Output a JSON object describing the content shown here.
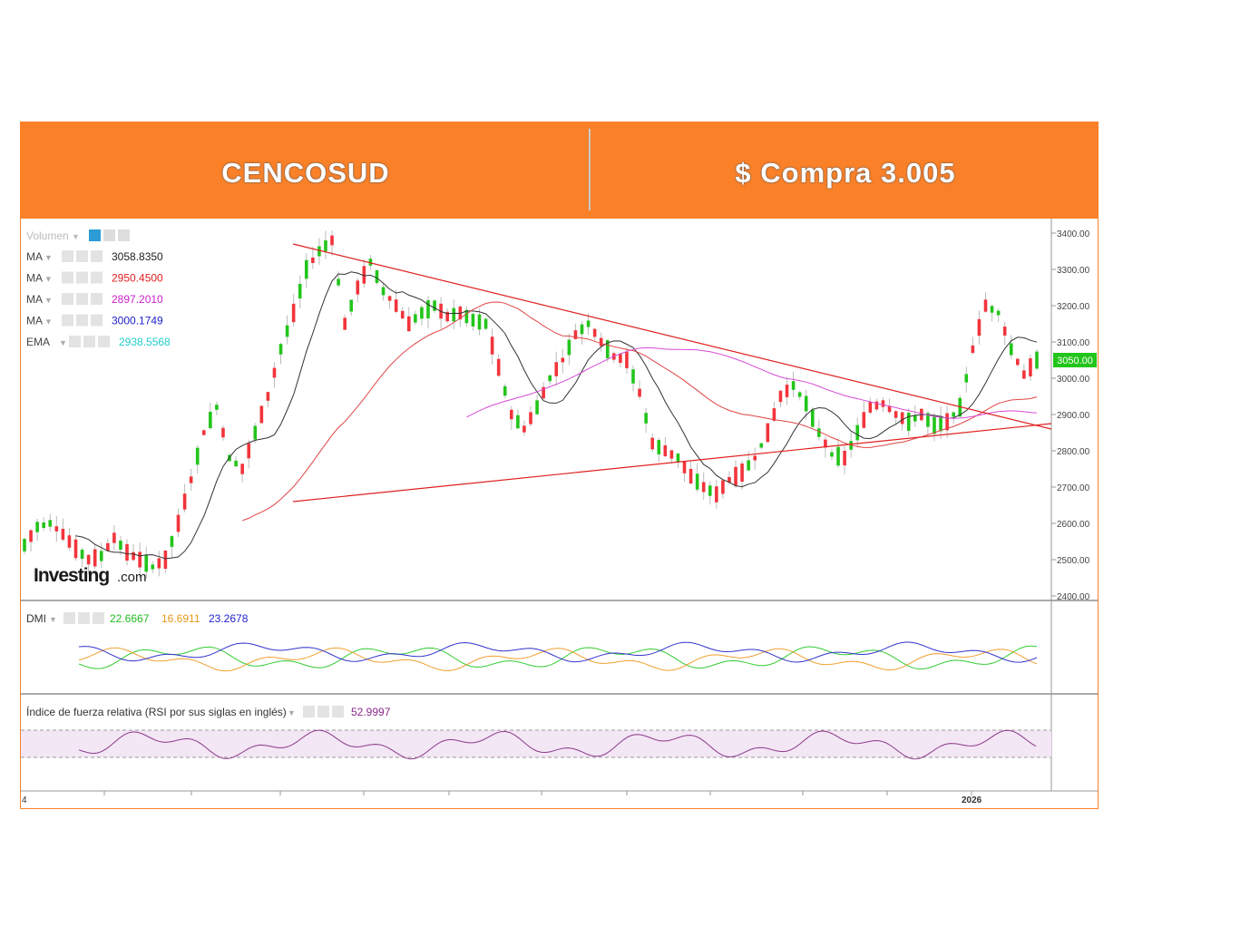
{
  "header": {
    "left_title": "CENCOSUD",
    "right_title": "$ Compra 3.005"
  },
  "colors": {
    "banner": "#fb8128",
    "up": "#22c51a",
    "down": "#f2343b",
    "ma1": "#333333",
    "ma2": "#e04545",
    "ma3": "#d64bd6",
    "ma4": "#3333cc",
    "ema": "#33cccc",
    "dmi_plus": "#33cc33",
    "dmi_minus": "#f0a030",
    "adx": "#3333cc",
    "rsi": "#8a3a8a"
  },
  "legend": {
    "volume": "Volumen",
    "indicators": [
      {
        "name": "MA",
        "value": "3058.8350",
        "color": "#222222"
      },
      {
        "name": "MA",
        "value": "2950.4500",
        "color": "#e02020"
      },
      {
        "name": "MA",
        "value": "2897.2010",
        "color": "#cc22cc"
      },
      {
        "name": "MA",
        "value": "3000.1749",
        "color": "#2222cc"
      },
      {
        "name": "EMA",
        "value": "2938.5568",
        "color": "#22cccc"
      }
    ],
    "dmi": {
      "name": "DMI",
      "values": [
        "22.6667",
        "16.6911",
        "23.2678"
      ]
    },
    "rsi": {
      "name": "Índice de fuerza relativa (RSI por sus siglas en inglés)",
      "value": "52.9997"
    }
  },
  "watermark": {
    "main": "Investing",
    "suffix": ".com"
  },
  "price_tag": "3050.00",
  "chart_data": {
    "type": "candlestick",
    "y_ticks": [
      "3400.00",
      "3300.00",
      "3200.00",
      "3100.00",
      "3000.00",
      "2900.00",
      "2800.00",
      "2700.00",
      "2600.00",
      "2500.00",
      "2400.00"
    ],
    "ylim": [
      2400,
      3420
    ],
    "x_labels": [
      "4",
      "2026"
    ],
    "close_path": [
      2540,
      2590,
      2600,
      2570,
      2530,
      2500,
      2510,
      2560,
      2520,
      2500,
      2480,
      2500,
      2600,
      2720,
      2850,
      2920,
      2780,
      2750,
      2850,
      2950,
      3080,
      3180,
      3300,
      3350,
      3380,
      3150,
      3250,
      3320,
      3240,
      3200,
      3150,
      3180,
      3200,
      3170,
      3180,
      3160,
      3150,
      3030,
      2900,
      2860,
      2920,
      3000,
      3050,
      3120,
      3150,
      3100,
      3060,
      3050,
      2960,
      2820,
      2800,
      2780,
      2730,
      2700,
      2680,
      2720,
      2740,
      2780,
      2850,
      2950,
      2980,
      2930,
      2850,
      2790,
      2780,
      2850,
      2920,
      2930,
      2900,
      2880,
      2900,
      2870,
      2880,
      2920,
      3080,
      3200,
      3180,
      3080,
      3010,
      3050
    ],
    "trendlines": [
      {
        "from": [
          3370,
          0
        ],
        "to": [
          2860,
          1
        ]
      },
      {
        "from": [
          2660,
          0
        ],
        "to": [
          2875,
          1
        ]
      }
    ]
  }
}
